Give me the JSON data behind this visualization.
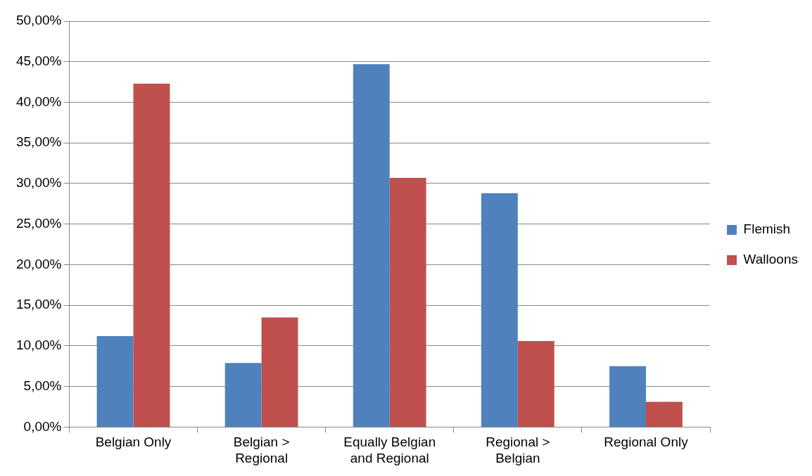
{
  "chart_data": {
    "type": "bar",
    "categories": [
      "Belgian Only",
      "Belgian > Regional",
      "Equally Belgian and Regional",
      "Regional > Belgian",
      "Regional Only"
    ],
    "series": [
      {
        "name": "Flemish",
        "color": "#4f81bd",
        "values": [
          11.2,
          7.9,
          44.7,
          28.8,
          7.5
        ]
      },
      {
        "name": "Walloons",
        "color": "#c0504d",
        "values": [
          42.3,
          13.5,
          30.7,
          10.6,
          3.1
        ]
      }
    ],
    "ylim": [
      0,
      50
    ],
    "yticks": [
      {
        "value": 0,
        "label": "0,00%"
      },
      {
        "value": 5,
        "label": "5,00%"
      },
      {
        "value": 10,
        "label": "10,00%"
      },
      {
        "value": 15,
        "label": "15,00%"
      },
      {
        "value": 20,
        "label": "20,00%"
      },
      {
        "value": 25,
        "label": "25,00%"
      },
      {
        "value": 30,
        "label": "30,00%"
      },
      {
        "value": 35,
        "label": "35,00%"
      },
      {
        "value": 40,
        "label": "40,00%"
      },
      {
        "value": 45,
        "label": "45,00%"
      },
      {
        "value": 50,
        "label": "50,00%"
      }
    ],
    "grid": "y",
    "legend": "right"
  }
}
